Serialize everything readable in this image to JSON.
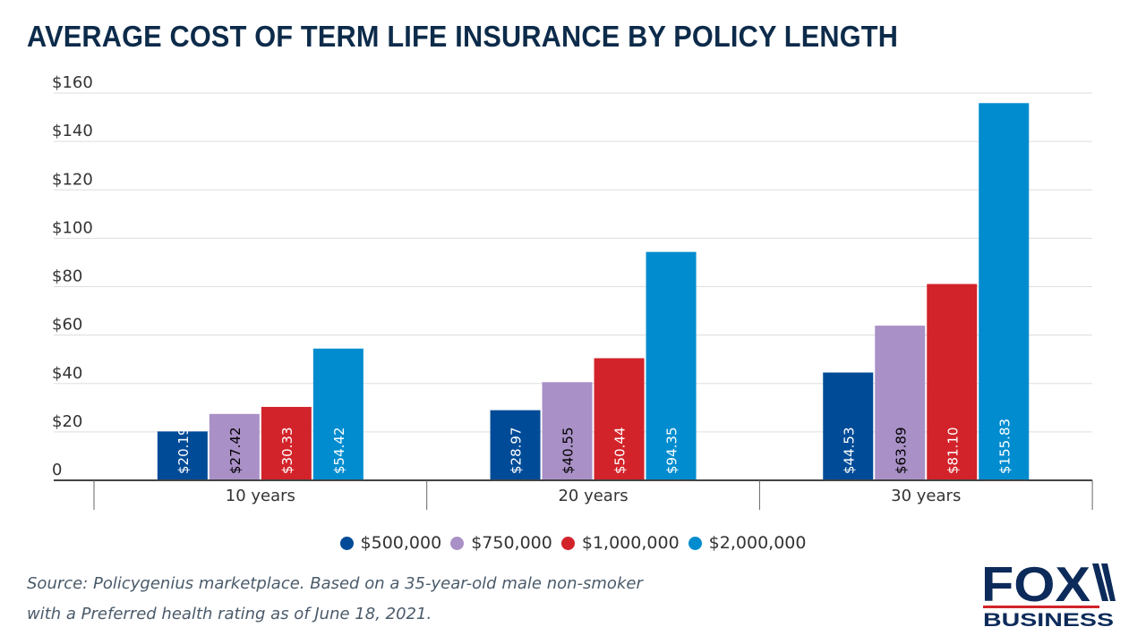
{
  "title": "AVERAGE COST OF TERM LIFE INSURANCE BY POLICY LENGTH",
  "source": "Source: Policygenius marketplace. Based on a 35-year-old male non-smoker with a Preferred health rating as of June 18, 2021.",
  "logo": {
    "text_top": "FOX",
    "text_bottom": "BUSINESS"
  },
  "chart_data": {
    "type": "bar",
    "title": "AVERAGE COST OF TERM LIFE INSURANCE BY POLICY LENGTH",
    "categories": [
      "10 years",
      "20 years",
      "30 years"
    ],
    "series": [
      {
        "name": "$500,000",
        "color": "#004b97",
        "label_color": "#ffffff",
        "values": [
          20.19,
          28.97,
          44.53
        ],
        "labels": [
          "$20.19",
          "$28.97",
          "$44.53"
        ]
      },
      {
        "name": "$750,000",
        "color": "#a990c6",
        "label_color": "#000000",
        "values": [
          27.42,
          40.55,
          63.89
        ],
        "labels": [
          "$27.42",
          "$40.55",
          "$63.89"
        ]
      },
      {
        "name": "$1,000,000",
        "color": "#d2232a",
        "label_color": "#ffffff",
        "values": [
          30.33,
          50.44,
          81.1
        ],
        "labels": [
          "$30.33",
          "$50.44",
          "$81.10"
        ]
      },
      {
        "name": "$2,000,000",
        "color": "#008ccf",
        "label_color": "#ffffff",
        "values": [
          54.42,
          94.35,
          155.83
        ],
        "labels": [
          "$54.42",
          "$94.35",
          "$155.83"
        ]
      }
    ],
    "ylim": [
      0,
      160
    ],
    "yticks": [
      0,
      20,
      40,
      60,
      80,
      100,
      120,
      140,
      160
    ],
    "ytick_labels": [
      "0",
      "$20",
      "$40",
      "$60",
      "$80",
      "$100",
      "$120",
      "$140",
      "$160"
    ],
    "grid": true,
    "legend": "bottom"
  }
}
